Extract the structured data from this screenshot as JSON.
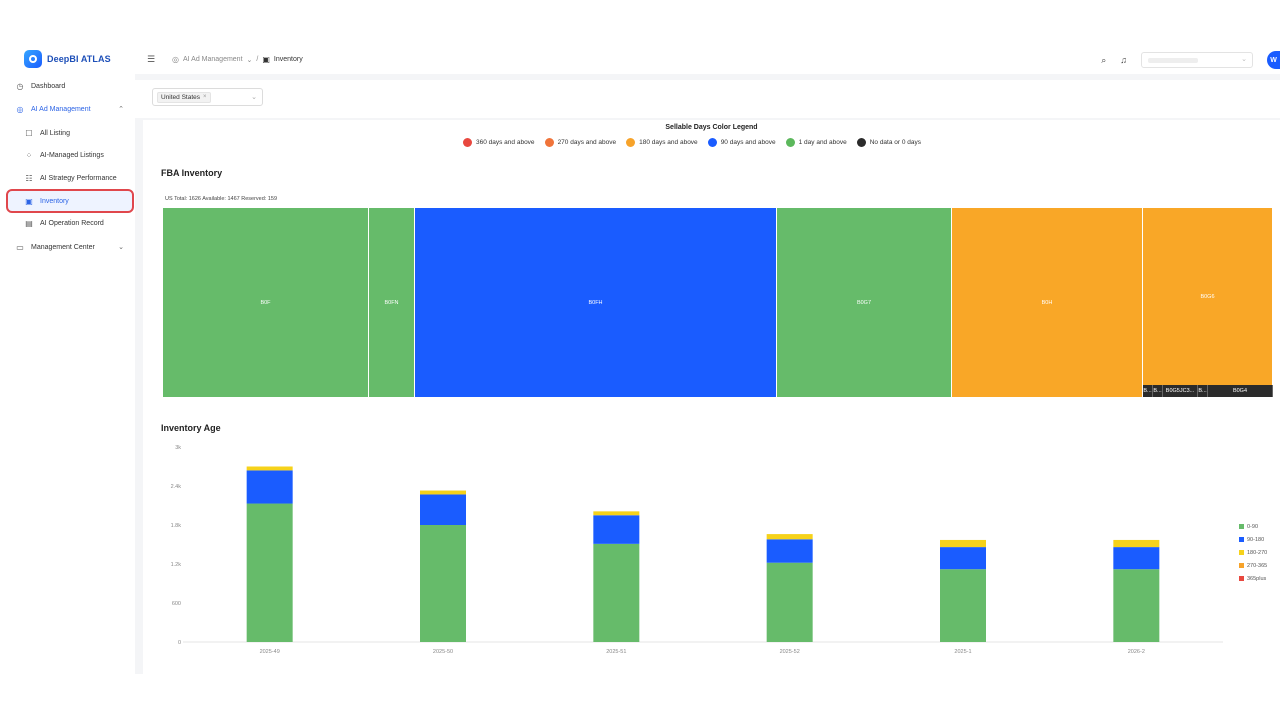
{
  "app": {
    "name": "DeepBI ATLAS"
  },
  "sidebar": {
    "items": [
      {
        "label": "Dashboard"
      },
      {
        "label": "AI Ad Management"
      },
      {
        "label": "All Listing"
      },
      {
        "label": "AI-Managed Listings"
      },
      {
        "label": "AI Strategy Performance"
      },
      {
        "label": "Inventory"
      },
      {
        "label": "AI Operation Record"
      },
      {
        "label": "Management Center"
      }
    ]
  },
  "topbar": {
    "breadcrumb": {
      "parent": "AI Ad Management",
      "separator": "/",
      "current": "Inventory"
    },
    "avatar_letter": "W"
  },
  "filter": {
    "country_tag": "United States"
  },
  "legend": {
    "title": "Sellable Days Color Legend",
    "items": [
      {
        "label": "360 days and above",
        "color": "#e8483f"
      },
      {
        "label": "270 days and above",
        "color": "#f0743a"
      },
      {
        "label": "180 days and above",
        "color": "#f7a32a"
      },
      {
        "label": "90 days and above",
        "color": "#1a5cff"
      },
      {
        "label": "1 day and above",
        "color": "#5cb85c"
      },
      {
        "label": "No data or 0 days",
        "color": "#2b2b2b"
      }
    ]
  },
  "fba": {
    "title": "FBA Inventory",
    "info": "US   Total: 1626  Available: 1467  Reserved: 159",
    "tiles": [
      {
        "label": "B0F",
        "color": "#66bb6a"
      },
      {
        "label": "B0FN",
        "color": "#66bb6a"
      },
      {
        "label": "B0FH",
        "color": "#1a5cff"
      },
      {
        "label": "B0G7",
        "color": "#66bb6a"
      },
      {
        "label": "B0H",
        "color": "#f9a727"
      },
      {
        "label": "B0G6",
        "color": "#f9a727"
      }
    ],
    "small_tiles": [
      {
        "label": "B..."
      },
      {
        "label": "B..."
      },
      {
        "label": "B0G5JC3..."
      },
      {
        "label": "B..."
      },
      {
        "label": "B0G4"
      }
    ]
  },
  "age": {
    "title": "Inventory Age"
  },
  "chart_data": {
    "type": "bar",
    "stacked": true,
    "categories": [
      "2025-49",
      "2025-50",
      "2025-51",
      "2025-52",
      "2025-1",
      "2026-2"
    ],
    "ylim": [
      0,
      3000
    ],
    "yticks": [
      0,
      600,
      1200,
      1800,
      2400,
      3000
    ],
    "ytick_labels": [
      "0",
      "600",
      "1.2k",
      "1.8k",
      "2.4k",
      "3k"
    ],
    "series": [
      {
        "name": "0-90",
        "color": "#66bb6a",
        "values": [
          2130,
          1800,
          1510,
          1220,
          1120,
          1120
        ]
      },
      {
        "name": "90-180",
        "color": "#1a5cff",
        "values": [
          510,
          470,
          440,
          360,
          340,
          340
        ]
      },
      {
        "name": "180-270",
        "color": "#f6d21a",
        "values": [
          60,
          60,
          60,
          80,
          110,
          110
        ]
      },
      {
        "name": "270-365",
        "color": "#f7a32a",
        "values": [
          0,
          0,
          0,
          0,
          0,
          0
        ]
      },
      {
        "name": "365plus",
        "color": "#e8483f",
        "values": [
          0,
          0,
          0,
          0,
          0,
          0
        ]
      }
    ],
    "legend_position": "right",
    "grid": false
  }
}
